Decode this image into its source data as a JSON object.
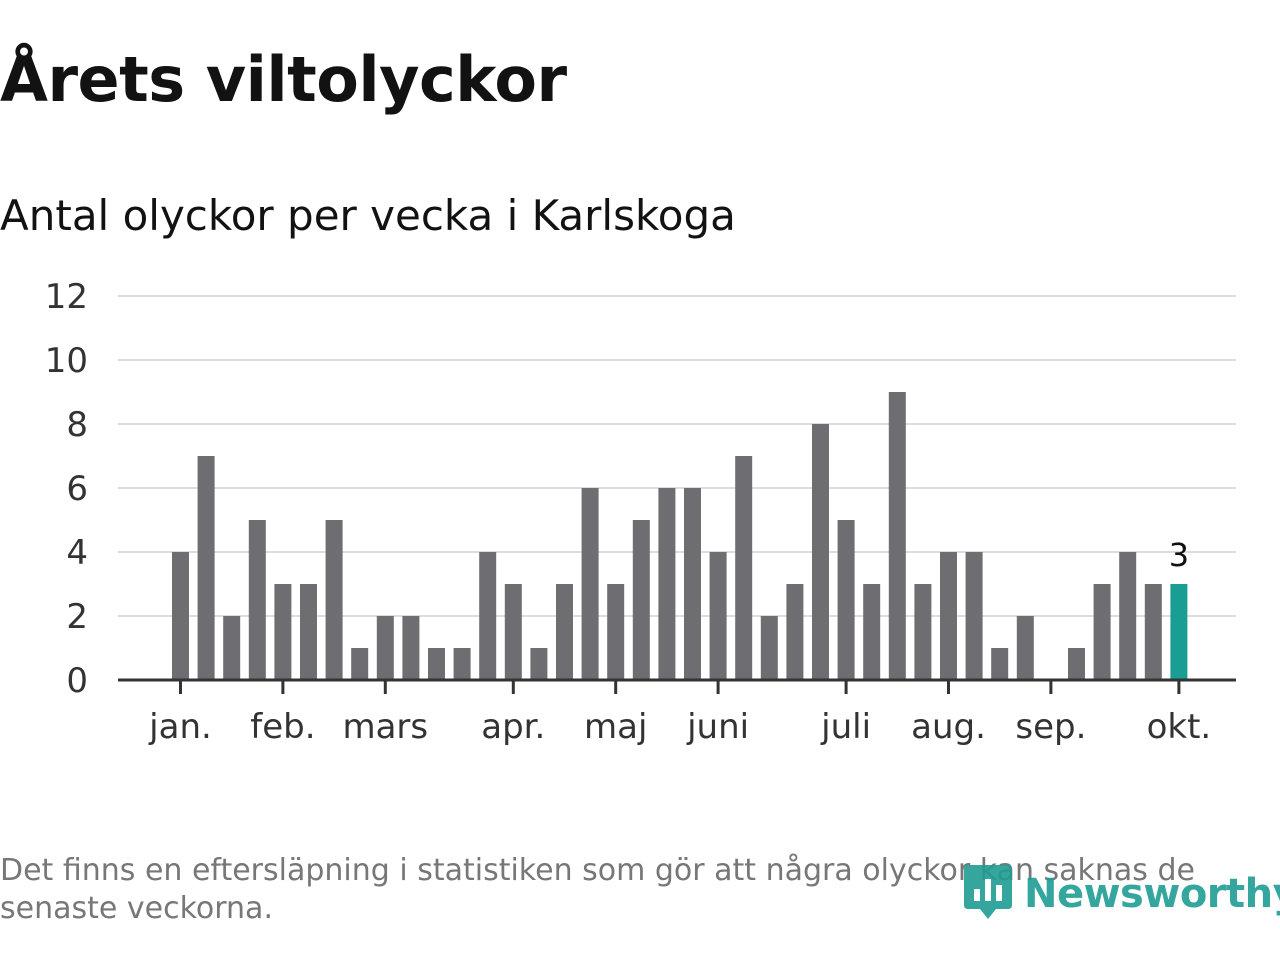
{
  "title": "Årets viltolyckor",
  "subtitle": "Antal olyckor per vecka i Karlskoga",
  "footnote": "Det finns en eftersläpning i statistiken som gör att några olyckor kan saknas de senaste veckorna.",
  "brand": {
    "name": "Newsworthy",
    "icon": "newsworthy-logo-icon"
  },
  "colors": {
    "bar": "#6e6d72",
    "highlight": "#1a9e94",
    "grid": "#dddddd",
    "axis": "#333333",
    "tick_text": "#333333"
  },
  "chart_data": {
    "type": "bar",
    "title": "",
    "xlabel": "",
    "ylabel": "",
    "ylim": [
      0,
      12
    ],
    "yticks": [
      0,
      2,
      4,
      6,
      8,
      10,
      12
    ],
    "grid": true,
    "weeks": [
      1,
      2,
      3,
      4,
      5,
      6,
      7,
      8,
      9,
      10,
      11,
      12,
      13,
      14,
      15,
      16,
      17,
      18,
      19,
      20,
      21,
      22,
      23,
      24,
      25,
      26,
      27,
      28,
      29,
      30,
      31,
      32,
      33,
      34,
      35,
      36,
      37,
      38,
      39,
      40
    ],
    "values": [
      4,
      7,
      2,
      5,
      3,
      3,
      5,
      1,
      2,
      2,
      1,
      1,
      4,
      3,
      1,
      3,
      6,
      3,
      5,
      6,
      6,
      4,
      7,
      2,
      3,
      8,
      5,
      3,
      9,
      3,
      4,
      4,
      1,
      2,
      0,
      1,
      3,
      4,
      3,
      3
    ],
    "highlight_index": 39,
    "highlight_label": "3",
    "month_ticks": [
      {
        "label": "jan.",
        "week": 1
      },
      {
        "label": "feb.",
        "week": 5
      },
      {
        "label": "mars",
        "week": 9
      },
      {
        "label": "apr.",
        "week": 14
      },
      {
        "label": "maj",
        "week": 18
      },
      {
        "label": "juni",
        "week": 22
      },
      {
        "label": "juli",
        "week": 27
      },
      {
        "label": "aug.",
        "week": 31
      },
      {
        "label": "sep.",
        "week": 35
      },
      {
        "label": "okt.",
        "week": 40
      }
    ]
  }
}
